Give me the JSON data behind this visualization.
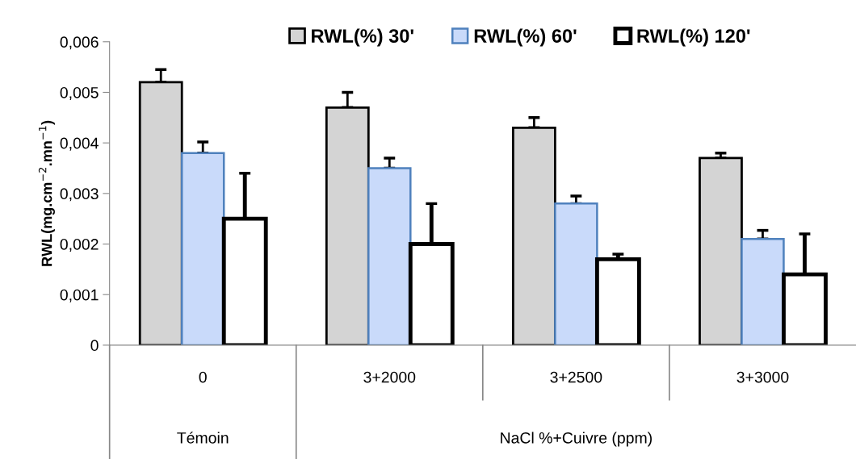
{
  "chart_data": {
    "type": "bar",
    "ylabel": "RWL(mg.cm$^{−2}$.mn$^{−1}$)",
    "categories": [
      "0",
      "3+2000",
      "3+2500",
      "3+3000"
    ],
    "series": [
      {
        "name": "RWL(%) 30'",
        "color": "#d4d4d4",
        "values": [
          0.0052,
          0.0047,
          0.0043,
          0.0037
        ],
        "errors": [
          0.00025,
          0.0003,
          0.0002,
          0.0001
        ]
      },
      {
        "name": "RWL(%) 60'",
        "color": "#c9dafa",
        "values": [
          0.0038,
          0.0035,
          0.0028,
          0.0021
        ],
        "errors": [
          0.00022,
          0.0002,
          0.00015,
          0.00017
        ]
      },
      {
        "name": "RWL(%) 120'",
        "color": "#ffffff",
        "values": [
          0.0025,
          0.002,
          0.0017,
          0.0014
        ],
        "errors": [
          0.0009,
          0.0008,
          0.0001,
          0.0008
        ]
      }
    ],
    "ylim": [
      0,
      0.006
    ],
    "yticks": [
      0,
      {
        "value": 0.001,
        "label": "0,001"
      },
      {
        "value": 0.002,
        "label": "0,002"
      },
      {
        "value": 0.003,
        "label": "0,003"
      },
      {
        "value": 0.004,
        "label": "0,004"
      },
      {
        "value": 0.005,
        "label": "0,005"
      },
      {
        "value": 0.006,
        "label": "0,006"
      }
    ],
    "annotations": [
      "Témoin",
      "NaCl %+Cuivre (ppm)"
    ],
    "legend": "top",
    "grid": false
  }
}
